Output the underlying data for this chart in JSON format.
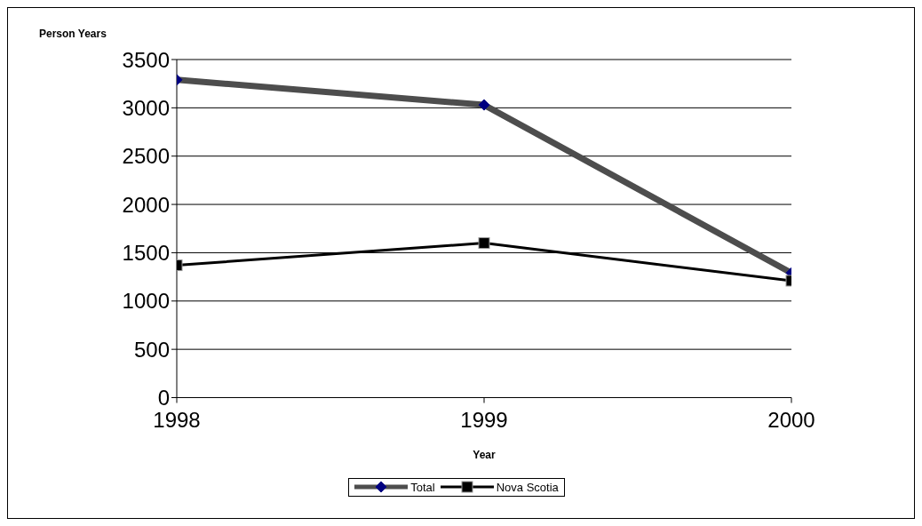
{
  "chart_data": {
    "type": "line",
    "xlabel": "Year",
    "ylabel": "Person Years",
    "x": [
      1998,
      1999,
      2000
    ],
    "xlim": [
      1998,
      2000
    ],
    "xticks": [
      1998,
      1999,
      2000
    ],
    "ylim": [
      0,
      3500
    ],
    "yticks": [
      0,
      500,
      1000,
      1500,
      2000,
      2500,
      3000,
      3500
    ],
    "grid": "y",
    "legend": "bottom",
    "line_style": "solid",
    "series": [
      {
        "name": "Total",
        "color": "#4d4d4d",
        "marker": "diamond",
        "values": [
          3290,
          3030,
          1290
        ]
      },
      {
        "name": "Nova Scotia",
        "color": "#000000",
        "marker": "square",
        "values": [
          1370,
          1600,
          1210
        ]
      }
    ]
  }
}
